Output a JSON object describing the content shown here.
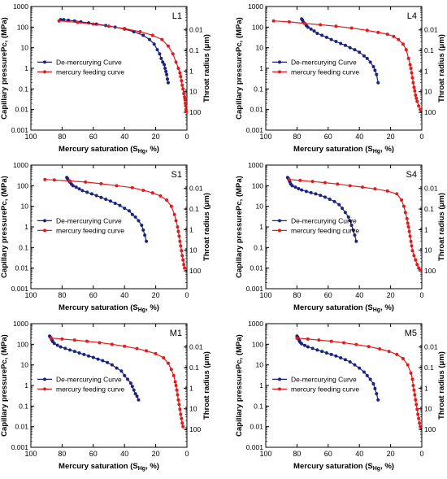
{
  "chart_data": [
    {
      "type": "line",
      "panel_label": "L1",
      "xlabel": "Mercury saturation (S",
      "xlabel_sub": "Hg",
      "xlabel_tail": ", %)",
      "ylabel": "Capillary pressurePc, (MPa)",
      "y2label": "Throat radius (μm)",
      "xlim": [
        100,
        0
      ],
      "ylim": [
        0.001,
        1000
      ],
      "yscale": "log",
      "y2scale": "log",
      "x_ticks": [
        "100",
        "80",
        "60",
        "40",
        "20",
        "0"
      ],
      "y_ticks": [
        "0.001",
        "0.01",
        "0.1",
        "1",
        "10",
        "100",
        "1000"
      ],
      "y2_ticks": [
        "0.01",
        "0.1",
        "1",
        "10",
        "100"
      ],
      "legend_position": "center-left",
      "series": [
        {
          "name": "De-mercurying Curve",
          "color": "#1a237e",
          "marker": "circle",
          "x": [
            81,
            79,
            76,
            72,
            68,
            63,
            58,
            52,
            46,
            40,
            34,
            28,
            24,
            21,
            19,
            17.5,
            16.5,
            15.5,
            14.5,
            14,
            13.5,
            13,
            12.5,
            12
          ],
          "y": [
            230,
            230,
            215,
            200,
            180,
            160,
            140,
            120,
            100,
            80,
            60,
            40,
            25,
            15,
            8,
            5,
            3,
            2,
            1.5,
            1,
            0.7,
            0.5,
            0.3,
            0.2
          ]
        },
        {
          "name": "mercury feeding curve",
          "color": "#e31a1c",
          "marker": "circle",
          "x": [
            82,
            70,
            60,
            50,
            40,
            30,
            22,
            16,
            12,
            9,
            7,
            5.5,
            4.5,
            4,
            3.5,
            3,
            2.5,
            2,
            1.5,
            1.2,
            1,
            0.8,
            0.6,
            0.4
          ],
          "y": [
            200,
            170,
            140,
            110,
            85,
            60,
            40,
            25,
            12,
            5,
            2,
            1,
            0.6,
            0.4,
            0.25,
            0.15,
            0.1,
            0.06,
            0.04,
            0.03,
            0.02,
            0.015,
            0.01,
            0.008
          ]
        }
      ]
    },
    {
      "type": "line",
      "panel_label": "L4",
      "xlabel": "Mercury saturation (S",
      "xlabel_sub": "Hg",
      "xlabel_tail": ", %)",
      "ylabel": "Capillary pressurePc, (MPa)",
      "y2label": "Throat radius (μm)",
      "xlim": [
        100,
        0
      ],
      "ylim": [
        0.001,
        1000
      ],
      "yscale": "log",
      "y2scale": "log",
      "x_ticks": [
        "100",
        "80",
        "60",
        "40",
        "20",
        "0"
      ],
      "y_ticks": [
        "0.001",
        "0.01",
        "0.1",
        "1",
        "10",
        "100",
        "1000"
      ],
      "y2_ticks": [
        "0.01",
        "0.1",
        "1",
        "10",
        "100"
      ],
      "legend_position": "center-left",
      "series": [
        {
          "name": "De-mercurying Curve",
          "color": "#1a237e",
          "marker": "circle",
          "x": [
            77,
            76.5,
            76,
            75,
            74,
            73,
            71,
            69,
            67,
            64,
            61,
            58,
            55,
            52,
            49,
            46,
            43,
            40,
            37,
            35,
            33,
            31,
            30,
            29,
            28
          ],
          "y": [
            250,
            220,
            180,
            150,
            120,
            100,
            80,
            65,
            50,
            40,
            32,
            25,
            20,
            16,
            13,
            10,
            8,
            6,
            4,
            3,
            2,
            1.2,
            0.8,
            0.5,
            0.2
          ]
        },
        {
          "name": "mercury feeding curve",
          "color": "#e31a1c",
          "marker": "circle",
          "x": [
            95,
            85,
            75,
            65,
            55,
            45,
            35,
            28,
            22,
            18,
            15,
            12,
            10,
            8.5,
            7.5,
            7,
            6.5,
            6,
            5.5,
            5,
            4.5,
            4,
            3.5,
            3,
            2,
            1
          ],
          "y": [
            200,
            180,
            150,
            130,
            110,
            90,
            70,
            55,
            45,
            35,
            25,
            15,
            8,
            3,
            1.5,
            1,
            0.6,
            0.35,
            0.2,
            0.12,
            0.08,
            0.05,
            0.035,
            0.025,
            0.015,
            0.01
          ]
        }
      ]
    },
    {
      "type": "line",
      "panel_label": "S1",
      "xlabel": "Mercury saturation (S",
      "xlabel_sub": "Hg",
      "xlabel_tail": ", %)",
      "ylabel": "Capillary pressurePc, (MPa)",
      "y2label": "Throat radius (μm)",
      "xlim": [
        100,
        0
      ],
      "ylim": [
        0.001,
        1000
      ],
      "yscale": "log",
      "y2scale": "log",
      "x_ticks": [
        "100",
        "80",
        "60",
        "40",
        "20",
        "0"
      ],
      "y_ticks": [
        "0.001",
        "0.01",
        "0.1",
        "1",
        "10",
        "100",
        "1000"
      ],
      "y2_ticks": [
        "0.01",
        "0.1",
        "1",
        "10",
        "100"
      ],
      "legend_position": "center-left",
      "series": [
        {
          "name": "De-mercurying Curve",
          "color": "#1a237e",
          "marker": "circle",
          "x": [
            77,
            76.5,
            76,
            75,
            74,
            73,
            71,
            69,
            67,
            64,
            61,
            58,
            55,
            52,
            49,
            46,
            43,
            40,
            37,
            35,
            33,
            31,
            29,
            28,
            27,
            26
          ],
          "y": [
            250,
            220,
            180,
            150,
            120,
            100,
            85,
            70,
            58,
            48,
            40,
            33,
            27,
            22,
            18,
            14,
            11,
            8,
            6,
            4,
            3,
            2,
            1.2,
            0.7,
            0.4,
            0.2
          ]
        },
        {
          "name": "mercury feeding curve",
          "color": "#e31a1c",
          "marker": "circle",
          "x": [
            91,
            85,
            75,
            65,
            55,
            45,
            35,
            28,
            22,
            17,
            13,
            10,
            8,
            7,
            6,
            5.5,
            5,
            4.5,
            4,
            3.5,
            3,
            2.5,
            2,
            1.5
          ],
          "y": [
            200,
            190,
            170,
            150,
            125,
            100,
            80,
            60,
            45,
            32,
            20,
            10,
            4,
            2,
            1,
            0.6,
            0.35,
            0.2,
            0.12,
            0.07,
            0.04,
            0.025,
            0.015,
            0.01
          ]
        }
      ]
    },
    {
      "type": "line",
      "panel_label": "S4",
      "xlabel": "Mercury saturation (S",
      "xlabel_sub": "Hg",
      "xlabel_tail": ", %)",
      "ylabel": "Capillary pressurePc, (MPa)",
      "y2label": "Throat radius (μm)",
      "xlim": [
        100,
        0
      ],
      "ylim": [
        0.001,
        1000
      ],
      "yscale": "log",
      "y2scale": "log",
      "x_ticks": [
        "100",
        "80",
        "60",
        "40",
        "20",
        "0"
      ],
      "y_ticks": [
        "0.001",
        "0.01",
        "0.1",
        "1",
        "10",
        "100",
        "1000"
      ],
      "y2_ticks": [
        "0.01",
        "0.1",
        "1",
        "10",
        "100"
      ],
      "legend_position": "center-left",
      "series": [
        {
          "name": "De-mercurying Curve",
          "color": "#1a237e",
          "marker": "circle",
          "x": [
            86,
            85.5,
            85,
            84.5,
            84,
            83,
            81,
            79,
            77,
            74,
            71,
            68,
            65,
            62,
            59,
            56,
            53,
            51,
            49,
            47,
            46,
            45,
            44,
            43,
            42
          ],
          "y": [
            250,
            220,
            180,
            150,
            120,
            100,
            85,
            72,
            62,
            53,
            46,
            40,
            34,
            28,
            22,
            17,
            12,
            8,
            5,
            3,
            2,
            1.2,
            0.7,
            0.4,
            0.2
          ]
        },
        {
          "name": "mercury feeding curve",
          "color": "#e31a1c",
          "marker": "circle",
          "x": [
            85,
            78,
            70,
            62,
            54,
            46,
            38,
            30,
            22,
            16,
            13,
            11.5,
            10.5,
            9.5,
            9,
            8.5,
            8,
            7.5,
            7,
            6.5,
            6,
            5,
            4,
            3,
            2,
            1
          ],
          "y": [
            200,
            180,
            160,
            140,
            120,
            100,
            85,
            70,
            55,
            40,
            20,
            10,
            5,
            2.5,
            1.5,
            1,
            0.6,
            0.35,
            0.2,
            0.12,
            0.07,
            0.04,
            0.025,
            0.015,
            0.01,
            0.008
          ]
        }
      ]
    },
    {
      "type": "line",
      "panel_label": "M1",
      "xlabel": "Mercury saturation (S",
      "xlabel_sub": "Hg",
      "xlabel_tail": ", %)",
      "ylabel": "Capillary pressurePc, (MPa)",
      "y2label": "Throat radius (μm)",
      "xlim": [
        100,
        0
      ],
      "ylim": [
        0.001,
        1000
      ],
      "yscale": "log",
      "y2scale": "log",
      "x_ticks": [
        "100",
        "80",
        "60",
        "40",
        "20",
        "0"
      ],
      "y_ticks": [
        "0.001",
        "0.01",
        "0.1",
        "1",
        "10",
        "100",
        "1000"
      ],
      "y2_ticks": [
        "0.01",
        "0.1",
        "1",
        "10",
        "100"
      ],
      "legend_position": "center-left",
      "series": [
        {
          "name": "De-mercurying Curve",
          "color": "#1a237e",
          "marker": "circle",
          "x": [
            88,
            87.5,
            87,
            86.5,
            86,
            85,
            83,
            81,
            78,
            75,
            72,
            69,
            66,
            63,
            60,
            57,
            54,
            51,
            48,
            45,
            42,
            40,
            38,
            36,
            35,
            34,
            33,
            32,
            31
          ],
          "y": [
            250,
            220,
            190,
            160,
            135,
            110,
            90,
            75,
            63,
            53,
            45,
            38,
            32,
            27,
            23,
            19,
            16,
            13,
            10,
            7,
            5,
            3,
            2,
            1.3,
            0.9,
            0.6,
            0.4,
            0.3,
            0.2
          ]
        },
        {
          "name": "mercury feeding curve",
          "color": "#e31a1c",
          "marker": "circle",
          "x": [
            87,
            80,
            72,
            64,
            56,
            48,
            40,
            32,
            26,
            20,
            15,
            12,
            10,
            8.5,
            7.5,
            7,
            6.5,
            6,
            5.5,
            5,
            4.5,
            4,
            3.5,
            3,
            2.5
          ],
          "y": [
            200,
            180,
            160,
            140,
            120,
            100,
            80,
            62,
            48,
            35,
            22,
            12,
            6,
            3,
            1.5,
            1,
            0.6,
            0.35,
            0.2,
            0.12,
            0.07,
            0.04,
            0.025,
            0.015,
            0.01
          ]
        }
      ]
    },
    {
      "type": "line",
      "panel_label": "M5",
      "xlabel": "Mercury saturation (S",
      "xlabel_sub": "Hg",
      "xlabel_tail": ", %)",
      "ylabel": "Capillary pressurePc, (MPa)",
      "y2label": "Throat radius (μm)",
      "xlim": [
        100,
        0
      ],
      "ylim": [
        0.001,
        1000
      ],
      "yscale": "log",
      "y2scale": "log",
      "x_ticks": [
        "100",
        "80",
        "60",
        "40",
        "20",
        "0"
      ],
      "y_ticks": [
        "0.001",
        "0.01",
        "0.1",
        "1",
        "10",
        "100",
        "1000"
      ],
      "y2_ticks": [
        "0.01",
        "0.1",
        "1",
        "10",
        "100"
      ],
      "legend_position": "center-left",
      "series": [
        {
          "name": "De-mercurying Curve",
          "color": "#1a237e",
          "marker": "circle",
          "x": [
            80,
            79.5,
            79,
            78.5,
            78,
            77,
            75,
            73,
            70,
            67,
            64,
            61,
            58,
            55,
            52,
            49,
            46,
            43,
            40,
            37,
            35,
            33,
            31,
            30,
            29,
            28
          ],
          "y": [
            250,
            220,
            180,
            150,
            125,
            105,
            88,
            75,
            63,
            53,
            45,
            38,
            32,
            27,
            22,
            18,
            14,
            10,
            7,
            4.5,
            3,
            2,
            1.2,
            0.7,
            0.4,
            0.2
          ]
        },
        {
          "name": "mercury feeding curve",
          "color": "#e31a1c",
          "marker": "circle",
          "x": [
            80,
            73,
            66,
            58,
            50,
            42,
            34,
            27,
            21,
            16,
            12,
            9,
            7,
            6,
            5.5,
            5,
            4.5,
            4,
            3.5,
            3,
            2.5,
            2,
            1.5,
            1
          ],
          "y": [
            200,
            180,
            160,
            140,
            118,
            97,
            78,
            60,
            45,
            32,
            20,
            10,
            4,
            2,
            1,
            0.6,
            0.35,
            0.2,
            0.12,
            0.07,
            0.04,
            0.025,
            0.015,
            0.01
          ]
        }
      ]
    }
  ]
}
